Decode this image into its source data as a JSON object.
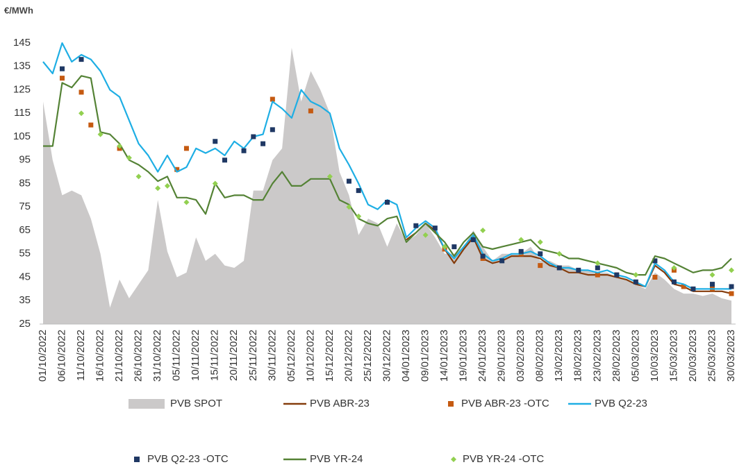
{
  "chart_data": {
    "type": "line",
    "ylabel": "€/MWh",
    "ylim": [
      25,
      145
    ],
    "yticks": [
      25,
      35,
      45,
      55,
      65,
      75,
      85,
      95,
      105,
      115,
      125,
      135,
      145
    ],
    "grid": false,
    "legend": "bottom",
    "categories": [
      "01/10/2022",
      null,
      "06/10/2022",
      null,
      "11/10/2022",
      null,
      "16/10/2022",
      null,
      "21/10/2022",
      null,
      "26/10/2022",
      null,
      "31/10/2022",
      null,
      "05/11/2022",
      null,
      "10/11/2022",
      null,
      "15/11/2022",
      null,
      "20/11/2022",
      null,
      "25/11/2022",
      null,
      "30/11/2022",
      null,
      "05/12/2022",
      null,
      "10/12/2022",
      null,
      "15/12/2022",
      null,
      "20/12/2022",
      null,
      "25/12/2022",
      null,
      "30/12/2022",
      null,
      "04/01/2023",
      null,
      "09/01/2023",
      null,
      "14/01/2023",
      null,
      "19/01/2023",
      null,
      "24/01/2023",
      null,
      "29/01/2023",
      null,
      "03/02/2023",
      null,
      "08/02/2023",
      null,
      "13/02/2023",
      null,
      "18/02/2023",
      null,
      "23/02/2023",
      null,
      "28/02/2023",
      null,
      "05/03/2023",
      null,
      "10/03/2023",
      null,
      "15/03/2023",
      null,
      "20/03/2023",
      null,
      "25/03/2023",
      null,
      "30/03/2023"
    ],
    "series": [
      {
        "name": "PVB SPOT",
        "kind": "area",
        "color": "#cbc9c9",
        "values": [
          120,
          95,
          80,
          82,
          80,
          70,
          55,
          32,
          44,
          36,
          42,
          48,
          78,
          56,
          45,
          47,
          62,
          52,
          55,
          50,
          49,
          52,
          82,
          82,
          95,
          100,
          143,
          120,
          133,
          125,
          115,
          90,
          80,
          63,
          70,
          68,
          58,
          68,
          60,
          63,
          68,
          62,
          55,
          55,
          58,
          65,
          58,
          52,
          55,
          55,
          55,
          58,
          52,
          52,
          50,
          50,
          48,
          48,
          47,
          47,
          45,
          44,
          42,
          40,
          47,
          44,
          40,
          38,
          38,
          37,
          38,
          36,
          35
        ]
      },
      {
        "name": "PVB ABR-23",
        "kind": "line",
        "color": "#843c0c",
        "values": [
          null,
          null,
          null,
          null,
          null,
          null,
          null,
          null,
          null,
          null,
          null,
          null,
          null,
          null,
          null,
          null,
          null,
          null,
          null,
          null,
          null,
          null,
          null,
          null,
          null,
          null,
          null,
          null,
          null,
          null,
          null,
          null,
          null,
          null,
          null,
          null,
          null,
          null,
          61,
          64,
          68,
          65,
          57,
          51,
          57,
          62,
          53,
          51,
          52,
          54,
          54,
          54,
          53,
          50,
          49,
          47,
          47,
          46,
          46,
          46,
          45,
          44,
          42,
          41,
          50,
          47,
          42,
          41,
          39,
          39,
          39,
          39,
          38
        ]
      },
      {
        "name": "PVB ABR-23 -OTC",
        "kind": "square",
        "color": "#c55a11",
        "values": [
          null,
          null,
          130,
          null,
          124,
          110,
          null,
          null,
          100,
          null,
          null,
          null,
          null,
          null,
          91,
          100,
          null,
          null,
          null,
          null,
          null,
          null,
          null,
          null,
          121,
          null,
          null,
          null,
          116,
          null,
          null,
          null,
          null,
          null,
          null,
          null,
          null,
          null,
          null,
          null,
          null,
          null,
          57,
          null,
          null,
          null,
          53,
          null,
          null,
          null,
          55,
          null,
          50,
          null,
          49,
          null,
          null,
          null,
          46,
          null,
          46,
          null,
          null,
          null,
          45,
          null,
          48,
          41,
          null,
          null,
          40,
          null,
          38
        ]
      },
      {
        "name": "PVB Q2-23",
        "kind": "line",
        "color": "#1eaee4",
        "values": [
          137,
          132,
          145,
          137,
          140,
          138,
          133,
          125,
          122,
          112,
          102,
          97,
          90,
          97,
          90,
          92,
          100,
          98,
          100,
          97,
          103,
          100,
          105,
          106,
          120,
          117,
          113,
          125,
          120,
          118,
          115,
          100,
          93,
          85,
          76,
          74,
          78,
          76,
          62,
          66,
          69,
          66,
          57,
          53,
          58,
          63,
          55,
          52,
          53,
          55,
          55,
          56,
          54,
          51,
          49,
          49,
          48,
          48,
          47,
          48,
          46,
          45,
          43,
          41,
          51,
          48,
          43,
          42,
          40,
          40,
          40,
          40,
          40
        ]
      },
      {
        "name": "PVB Q2-23 -OTC",
        "kind": "square",
        "color": "#1f3864",
        "values": [
          null,
          null,
          134,
          null,
          138,
          null,
          null,
          null,
          null,
          null,
          null,
          null,
          null,
          null,
          null,
          null,
          null,
          null,
          103,
          95,
          null,
          99,
          105,
          102,
          108,
          null,
          null,
          null,
          null,
          null,
          null,
          null,
          86,
          82,
          null,
          null,
          77,
          null,
          null,
          67,
          null,
          66,
          null,
          58,
          null,
          61,
          54,
          null,
          52,
          null,
          56,
          null,
          55,
          null,
          49,
          null,
          48,
          null,
          49,
          null,
          46,
          null,
          43,
          null,
          52,
          null,
          43,
          null,
          40,
          null,
          42,
          null,
          41
        ]
      },
      {
        "name": "PVB YR-24",
        "kind": "line",
        "color": "#548235",
        "values": [
          101,
          101,
          128,
          126,
          131,
          130,
          107,
          106,
          102,
          95,
          93,
          90,
          86,
          88,
          79,
          79,
          78,
          72,
          85,
          79,
          80,
          80,
          78,
          78,
          85,
          90,
          84,
          84,
          87,
          87,
          87,
          78,
          76,
          70,
          68,
          67,
          70,
          71,
          60,
          64,
          68,
          64,
          60,
          54,
          60,
          64,
          58,
          57,
          58,
          59,
          60,
          61,
          57,
          56,
          55,
          53,
          53,
          52,
          51,
          50,
          49,
          47,
          46,
          46,
          54,
          53,
          51,
          49,
          47,
          48,
          48,
          49,
          53
        ]
      },
      {
        "name": "PVB YR-24 -OTC",
        "kind": "diamond",
        "color": "#92d050",
        "values": [
          null,
          null,
          null,
          null,
          115,
          null,
          106,
          null,
          101,
          96,
          88,
          null,
          83,
          84,
          null,
          77,
          null,
          null,
          85,
          null,
          null,
          null,
          null,
          null,
          null,
          null,
          null,
          null,
          null,
          null,
          88,
          null,
          75,
          71,
          null,
          null,
          null,
          null,
          null,
          null,
          63,
          null,
          58,
          null,
          null,
          null,
          65,
          null,
          null,
          null,
          61,
          null,
          60,
          null,
          55,
          null,
          null,
          null,
          51,
          null,
          null,
          null,
          46,
          null,
          null,
          null,
          49,
          null,
          null,
          null,
          46,
          null,
          48
        ]
      }
    ]
  }
}
